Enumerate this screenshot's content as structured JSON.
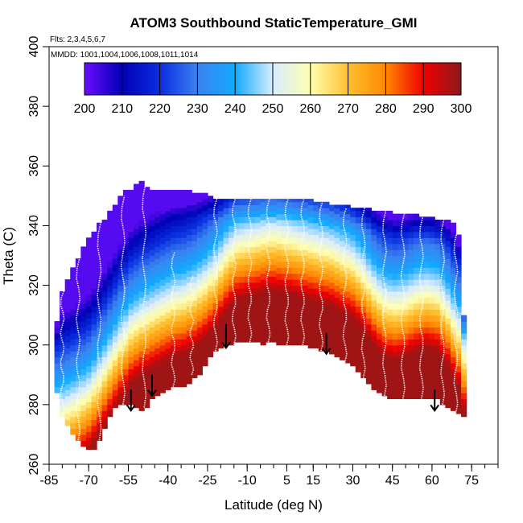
{
  "chart_data": {
    "type": "heatmap",
    "title": "ATOM3 Southbound StaticTemperature_GMI",
    "annotations": {
      "flights": "Flts: 2,3,4,5,6,7",
      "dates": "MMDD: 1001,1004,1006,1008,1011,1014"
    },
    "xlabel": "Latitude (deg N)",
    "ylabel": "Theta (C)",
    "xlim": [
      -85,
      85
    ],
    "ylim": [
      260,
      400
    ],
    "x_ticks": [
      -85,
      -70,
      -55,
      -40,
      -25,
      -10,
      5,
      15,
      30,
      45,
      60,
      75
    ],
    "x_tick_labels": [
      "-85",
      "-70",
      "-55",
      "-40",
      "-25",
      "-10",
      "5",
      "15",
      "30",
      "45",
      "60",
      "75"
    ],
    "y_ticks": [
      260,
      280,
      300,
      320,
      340,
      360,
      380,
      400
    ],
    "y_tick_labels": [
      "260",
      "280",
      "300",
      "320",
      "340",
      "360",
      "380",
      "400"
    ],
    "colorbar": {
      "range": [
        200,
        300
      ],
      "ticks": [
        200,
        210,
        220,
        230,
        240,
        250,
        260,
        270,
        280,
        290,
        300
      ],
      "tick_labels": [
        "200",
        "210",
        "220",
        "230",
        "240",
        "250",
        "260",
        "270",
        "280",
        "290",
        "300"
      ],
      "colors": [
        "#6a0dff",
        "#0000b4",
        "#0a2ee0",
        "#3b82f0",
        "#11aaff",
        "#d8ecff",
        "#ffffb0",
        "#ffc030",
        "#ff8800",
        "#f00000",
        "#8b1a1a"
      ]
    },
    "domain_top": [
      [
        -82,
        308
      ],
      [
        -80,
        318
      ],
      [
        -78,
        322
      ],
      [
        -76,
        326
      ],
      [
        -74,
        329
      ],
      [
        -72,
        333
      ],
      [
        -70,
        336
      ],
      [
        -68,
        338
      ],
      [
        -66,
        341
      ],
      [
        -64,
        342
      ],
      [
        -62,
        345
      ],
      [
        -60,
        347
      ],
      [
        -58,
        350
      ],
      [
        -56,
        352
      ],
      [
        -54,
        352
      ],
      [
        -52,
        354
      ],
      [
        -50,
        355
      ],
      [
        -48,
        353
      ],
      [
        -46,
        352
      ],
      [
        -44,
        352
      ],
      [
        -42,
        352
      ],
      [
        -40,
        352
      ],
      [
        -38,
        352
      ],
      [
        -36,
        352
      ],
      [
        -34,
        352
      ],
      [
        -32,
        352
      ],
      [
        -30,
        351
      ],
      [
        -28,
        351
      ],
      [
        -26,
        351
      ],
      [
        -24,
        350
      ],
      [
        -22,
        349
      ],
      [
        -20,
        349
      ],
      [
        -18,
        349
      ],
      [
        -16,
        349
      ],
      [
        -14,
        349
      ],
      [
        -12,
        349
      ],
      [
        -10,
        349
      ],
      [
        -8,
        349
      ],
      [
        -6,
        349
      ],
      [
        -4,
        349
      ],
      [
        -2,
        349
      ],
      [
        0,
        349
      ],
      [
        2,
        349
      ],
      [
        4,
        349
      ],
      [
        6,
        349
      ],
      [
        8,
        349
      ],
      [
        10,
        349
      ],
      [
        12,
        349
      ],
      [
        14,
        349
      ],
      [
        16,
        348
      ],
      [
        18,
        348
      ],
      [
        20,
        348
      ],
      [
        22,
        347
      ],
      [
        24,
        347
      ],
      [
        26,
        347
      ],
      [
        28,
        347
      ],
      [
        30,
        346
      ],
      [
        32,
        346
      ],
      [
        34,
        346
      ],
      [
        36,
        346
      ],
      [
        38,
        345
      ],
      [
        40,
        345
      ],
      [
        42,
        345
      ],
      [
        44,
        345
      ],
      [
        46,
        344
      ],
      [
        48,
        344
      ],
      [
        50,
        344
      ],
      [
        52,
        344
      ],
      [
        54,
        344
      ],
      [
        56,
        343
      ],
      [
        58,
        343
      ],
      [
        60,
        343
      ],
      [
        62,
        342
      ],
      [
        64,
        342
      ],
      [
        66,
        342
      ],
      [
        68,
        341
      ],
      [
        70,
        337
      ],
      [
        72,
        310
      ]
    ],
    "domain_bottom": [
      [
        -82,
        284
      ],
      [
        -80,
        276
      ],
      [
        -78,
        273
      ],
      [
        -76,
        270
      ],
      [
        -74,
        268
      ],
      [
        -72,
        266
      ],
      [
        -70,
        265
      ],
      [
        -68,
        265
      ],
      [
        -66,
        268
      ],
      [
        -64,
        272
      ],
      [
        -62,
        276
      ],
      [
        -60,
        279
      ],
      [
        -58,
        280
      ],
      [
        -56,
        280
      ],
      [
        -54,
        280
      ],
      [
        -52,
        279
      ],
      [
        -50,
        278
      ],
      [
        -48,
        279
      ],
      [
        -46,
        282
      ],
      [
        -44,
        283
      ],
      [
        -42,
        284
      ],
      [
        -40,
        285
      ],
      [
        -38,
        286
      ],
      [
        -36,
        286
      ],
      [
        -34,
        286
      ],
      [
        -32,
        287
      ],
      [
        -30,
        289
      ],
      [
        -28,
        290
      ],
      [
        -26,
        293
      ],
      [
        -24,
        296
      ],
      [
        -22,
        298
      ],
      [
        -20,
        299
      ],
      [
        -18,
        300
      ],
      [
        -16,
        300
      ],
      [
        -14,
        301
      ],
      [
        -12,
        301
      ],
      [
        -10,
        301
      ],
      [
        -8,
        301
      ],
      [
        -6,
        301
      ],
      [
        -4,
        300
      ],
      [
        -2,
        301
      ],
      [
        0,
        301
      ],
      [
        2,
        300
      ],
      [
        4,
        300
      ],
      [
        6,
        300
      ],
      [
        8,
        300
      ],
      [
        10,
        300
      ],
      [
        12,
        300
      ],
      [
        14,
        299
      ],
      [
        16,
        299
      ],
      [
        18,
        298
      ],
      [
        20,
        298
      ],
      [
        22,
        297
      ],
      [
        24,
        296
      ],
      [
        26,
        295
      ],
      [
        28,
        294
      ],
      [
        30,
        293
      ],
      [
        32,
        291
      ],
      [
        34,
        289
      ],
      [
        36,
        287
      ],
      [
        38,
        285
      ],
      [
        40,
        284
      ],
      [
        42,
        283
      ],
      [
        44,
        282
      ],
      [
        46,
        282
      ],
      [
        48,
        282
      ],
      [
        50,
        282
      ],
      [
        52,
        282
      ],
      [
        54,
        282
      ],
      [
        56,
        282
      ],
      [
        58,
        282
      ],
      [
        60,
        282
      ],
      [
        62,
        282
      ],
      [
        64,
        280
      ],
      [
        66,
        279
      ],
      [
        68,
        278
      ],
      [
        70,
        277
      ],
      [
        72,
        276
      ]
    ],
    "isotherm_theta_250": [
      [
        -82,
        280
      ],
      [
        -78,
        282
      ],
      [
        -74,
        284
      ],
      [
        -70,
        287
      ],
      [
        -66,
        292
      ],
      [
        -62,
        298
      ],
      [
        -58,
        304
      ],
      [
        -54,
        309
      ],
      [
        -50,
        312
      ],
      [
        -46,
        314
      ],
      [
        -42,
        316
      ],
      [
        -38,
        318
      ],
      [
        -34,
        319
      ],
      [
        -30,
        321
      ],
      [
        -26,
        324
      ],
      [
        -22,
        328
      ],
      [
        -18,
        333
      ],
      [
        -14,
        337
      ],
      [
        -10,
        338
      ],
      [
        -6,
        339
      ],
      [
        -2,
        340
      ],
      [
        2,
        340
      ],
      [
        6,
        339
      ],
      [
        10,
        338
      ],
      [
        14,
        337
      ],
      [
        18,
        336
      ],
      [
        22,
        335
      ],
      [
        26,
        333
      ],
      [
        30,
        331
      ],
      [
        34,
        327
      ],
      [
        38,
        322
      ],
      [
        42,
        318
      ],
      [
        46,
        317
      ],
      [
        50,
        318
      ],
      [
        54,
        320
      ],
      [
        58,
        321
      ],
      [
        62,
        320
      ],
      [
        66,
        315
      ],
      [
        70,
        308
      ],
      [
        72,
        300
      ]
    ],
    "arrows": [
      {
        "lat": -54,
        "theta_start": 285,
        "theta_end": 278
      },
      {
        "lat": -46,
        "theta_start": 290,
        "theta_end": 283
      },
      {
        "lat": -18,
        "theta_start": 307,
        "theta_end": 299
      },
      {
        "lat": 20,
        "theta_start": 304,
        "theta_end": 297
      },
      {
        "lat": 61,
        "theta_start": 285,
        "theta_end": 278
      }
    ],
    "profiles": [
      {
        "lat": -80,
        "theta_min": 276,
        "theta_max": 318
      },
      {
        "lat": -74,
        "theta_min": 268,
        "theta_max": 329
      },
      {
        "lat": -66,
        "theta_min": 268,
        "theta_max": 341
      },
      {
        "lat": -57,
        "theta_min": 280,
        "theta_max": 350
      },
      {
        "lat": -49,
        "theta_min": 279,
        "theta_max": 354
      },
      {
        "lat": -38,
        "theta_min": 286,
        "theta_max": 331
      },
      {
        "lat": -31,
        "theta_min": 290,
        "theta_max": 323
      },
      {
        "lat": -22,
        "theta_min": 298,
        "theta_max": 349
      },
      {
        "lat": -15,
        "theta_min": 300,
        "theta_max": 349
      },
      {
        "lat": -9,
        "theta_min": 301,
        "theta_max": 349
      },
      {
        "lat": -2,
        "theta_min": 301,
        "theta_max": 349
      },
      {
        "lat": 5,
        "theta_min": 300,
        "theta_max": 349
      },
      {
        "lat": 11,
        "theta_min": 300,
        "theta_max": 349
      },
      {
        "lat": 18,
        "theta_min": 298,
        "theta_max": 348
      },
      {
        "lat": 27,
        "theta_min": 294,
        "theta_max": 346
      },
      {
        "lat": 34,
        "theta_min": 289,
        "theta_max": 346
      },
      {
        "lat": 42,
        "theta_min": 283,
        "theta_max": 345
      },
      {
        "lat": 49,
        "theta_min": 282,
        "theta_max": 344
      },
      {
        "lat": 56,
        "theta_min": 282,
        "theta_max": 343
      },
      {
        "lat": 64,
        "theta_min": 280,
        "theta_max": 342
      },
      {
        "lat": 69,
        "theta_min": 277,
        "theta_max": 338
      }
    ]
  }
}
